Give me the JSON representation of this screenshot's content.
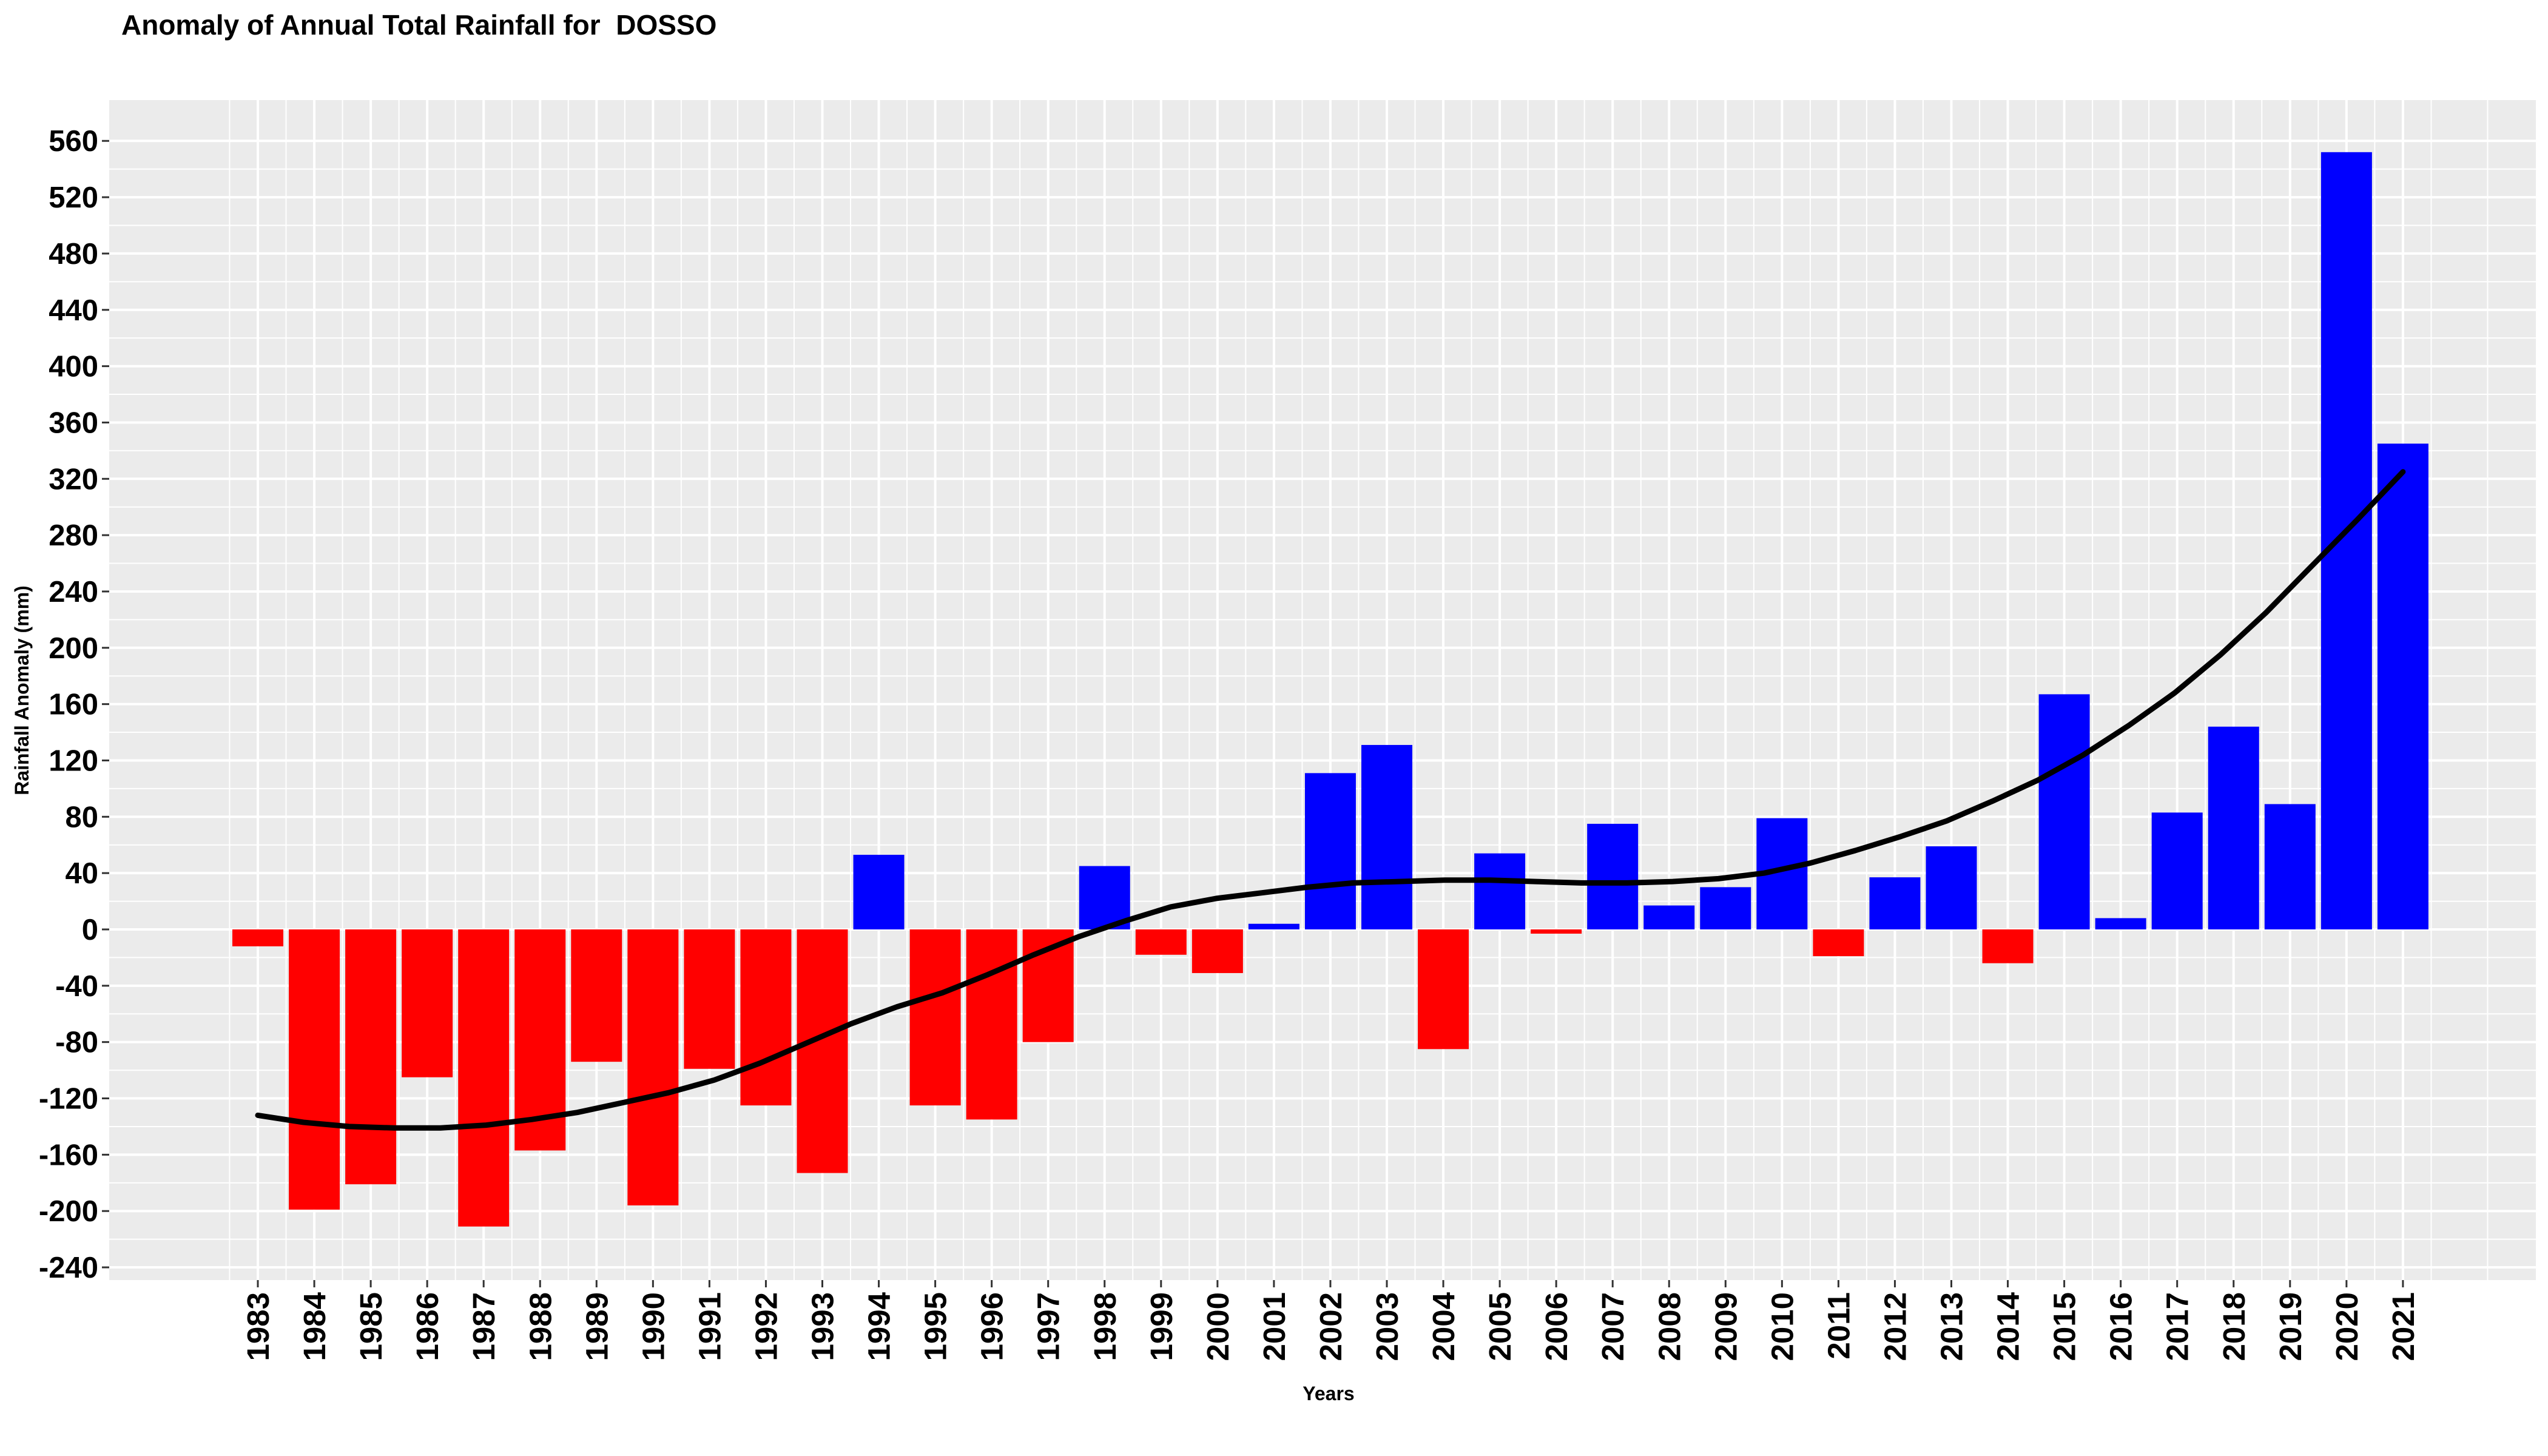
{
  "chart_data": {
    "type": "bar",
    "title": "Anomaly of Annual Total Rainfall for  DOSSO",
    "xlabel": "Years",
    "ylabel": "Rainfall Anomaly (mm)",
    "ylim": [
      -246,
      590
    ],
    "yticks": [
      -240,
      -200,
      -160,
      -120,
      -80,
      -40,
      0,
      40,
      80,
      120,
      160,
      200,
      240,
      280,
      320,
      360,
      400,
      440,
      480,
      520,
      560
    ],
    "grid": true,
    "legend": "none",
    "colors": {
      "positive": "#0000ff",
      "negative": "#ff0000",
      "trend": "#000000",
      "panel": "#ebebeb",
      "grid": "#ffffff"
    },
    "categories": [
      "1983",
      "1984",
      "1985",
      "1986",
      "1987",
      "1988",
      "1989",
      "1990",
      "1991",
      "1992",
      "1993",
      "1994",
      "1995",
      "1996",
      "1997",
      "1998",
      "1999",
      "2000",
      "2001",
      "2002",
      "2003",
      "2004",
      "2005",
      "2006",
      "2007",
      "2008",
      "2009",
      "2010",
      "2011",
      "2012",
      "2013",
      "2014",
      "2015",
      "2016",
      "2017",
      "2018",
      "2019",
      "2020",
      "2021"
    ],
    "values": [
      -12,
      -199,
      -181,
      -105,
      -211,
      -157,
      -94,
      -196,
      -99,
      -125,
      -173,
      53,
      -125,
      -135,
      -80,
      45,
      -18,
      -31,
      4,
      111,
      131,
      -85,
      54,
      -3,
      75,
      17,
      30,
      79,
      -19,
      37,
      59,
      -24,
      167,
      8,
      83,
      144,
      89,
      552,
      345
    ],
    "trend": [
      -132,
      -137,
      -140,
      -141,
      -141,
      -139,
      -135,
      -130,
      -123,
      -116,
      -107,
      -95,
      -81,
      -67,
      -55,
      -45,
      -32,
      -18,
      -5,
      6,
      16,
      22,
      26,
      30,
      33,
      34,
      35,
      35,
      34,
      33,
      33,
      34,
      36,
      40,
      47,
      56,
      66,
      77,
      91,
      106,
      124,
      145,
      168,
      195,
      225,
      258,
      291,
      325
    ]
  }
}
